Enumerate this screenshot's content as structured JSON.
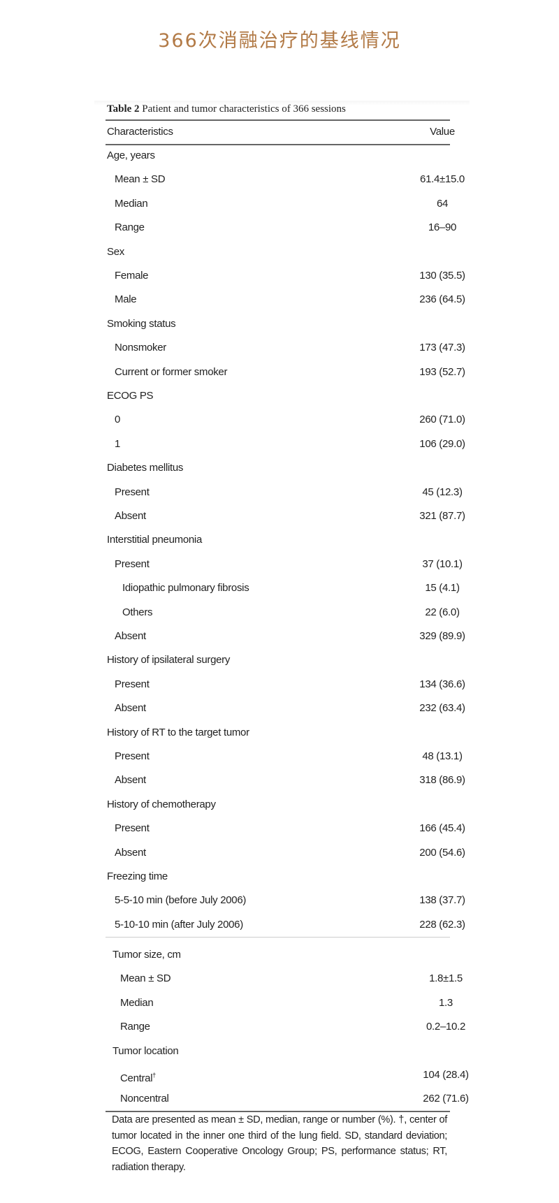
{
  "title": "366次消融治疗的基线情况",
  "table": {
    "caption_label": "Table 2",
    "caption_text": " Patient and tumor characteristics of 366 sessions",
    "headers": [
      "Characteristics",
      "Value"
    ],
    "rows": [
      {
        "label": "Age, years",
        "value": "",
        "indent": 0
      },
      {
        "label": "Mean ± SD",
        "value": "61.4±15.0",
        "indent": 1
      },
      {
        "label": "Median",
        "value": "64",
        "indent": 1
      },
      {
        "label": "Range",
        "value": "16–90",
        "indent": 1
      },
      {
        "label": "Sex",
        "value": "",
        "indent": 0
      },
      {
        "label": "Female",
        "value": "130 (35.5)",
        "indent": 1
      },
      {
        "label": "Male",
        "value": "236 (64.5)",
        "indent": 1
      },
      {
        "label": "Smoking status",
        "value": "",
        "indent": 0
      },
      {
        "label": "Nonsmoker",
        "value": "173 (47.3)",
        "indent": 1
      },
      {
        "label": "Current or former smoker",
        "value": "193 (52.7)",
        "indent": 1
      },
      {
        "label": "ECOG PS",
        "value": "",
        "indent": 0
      },
      {
        "label": "0",
        "value": "260 (71.0)",
        "indent": 1
      },
      {
        "label": "1",
        "value": "106 (29.0)",
        "indent": 1
      },
      {
        "label": "Diabetes mellitus",
        "value": "",
        "indent": 0
      },
      {
        "label": "Present",
        "value": "45 (12.3)",
        "indent": 1
      },
      {
        "label": "Absent",
        "value": "321 (87.7)",
        "indent": 1
      },
      {
        "label": "Interstitial pneumonia",
        "value": "",
        "indent": 0
      },
      {
        "label": "Present",
        "value": "37 (10.1)",
        "indent": 1
      },
      {
        "label": "Idiopathic pulmonary fibrosis",
        "value": "15 (4.1)",
        "indent": 2
      },
      {
        "label": "Others",
        "value": "22 (6.0)",
        "indent": 2
      },
      {
        "label": "Absent",
        "value": "329 (89.9)",
        "indent": 1
      },
      {
        "label": "History of ipsilateral surgery",
        "value": "",
        "indent": 0
      },
      {
        "label": "Present",
        "value": "134 (36.6)",
        "indent": 1
      },
      {
        "label": "Absent",
        "value": "232 (63.4)",
        "indent": 1
      },
      {
        "label": "History of RT to the target tumor",
        "value": "",
        "indent": 0
      },
      {
        "label": "Present",
        "value": "48 (13.1)",
        "indent": 1
      },
      {
        "label": "Absent",
        "value": "318 (86.9)",
        "indent": 1
      },
      {
        "label": "History of chemotherapy",
        "value": "",
        "indent": 0
      },
      {
        "label": "Present",
        "value": "166 (45.4)",
        "indent": 1
      },
      {
        "label": "Absent",
        "value": "200 (54.6)",
        "indent": 1
      },
      {
        "label": "Freezing time",
        "value": "",
        "indent": 0
      },
      {
        "label": "5-5-10 min (before July 2006)",
        "value": "138 (37.7)",
        "indent": 1
      },
      {
        "label": "5-10-10 min (after July 2006)",
        "value": "228 (62.3)",
        "indent": 1
      }
    ],
    "rows2": [
      {
        "label": "Tumor size, cm",
        "value": "",
        "indent": 0
      },
      {
        "label": "Mean ± SD",
        "value": "1.8±1.5",
        "indent": 1
      },
      {
        "label": "Median",
        "value": "1.3",
        "indent": 1
      },
      {
        "label": "Range",
        "value": "0.2–10.2",
        "indent": 1
      },
      {
        "label": "Tumor location",
        "value": "",
        "indent": 0
      },
      {
        "label": "Central",
        "sup": "†",
        "value": "104 (28.4)",
        "indent": 1
      },
      {
        "label": "Noncentral",
        "value": "262 (71.6)",
        "indent": 1
      }
    ],
    "footnote": "Data are presented as mean ± SD, median, range or number (%). †, center of tumor located in the inner one third of the lung field. SD, standard deviation; ECOG, Eastern Cooperative Oncology Group; PS, performance status; RT, radiation therapy."
  }
}
